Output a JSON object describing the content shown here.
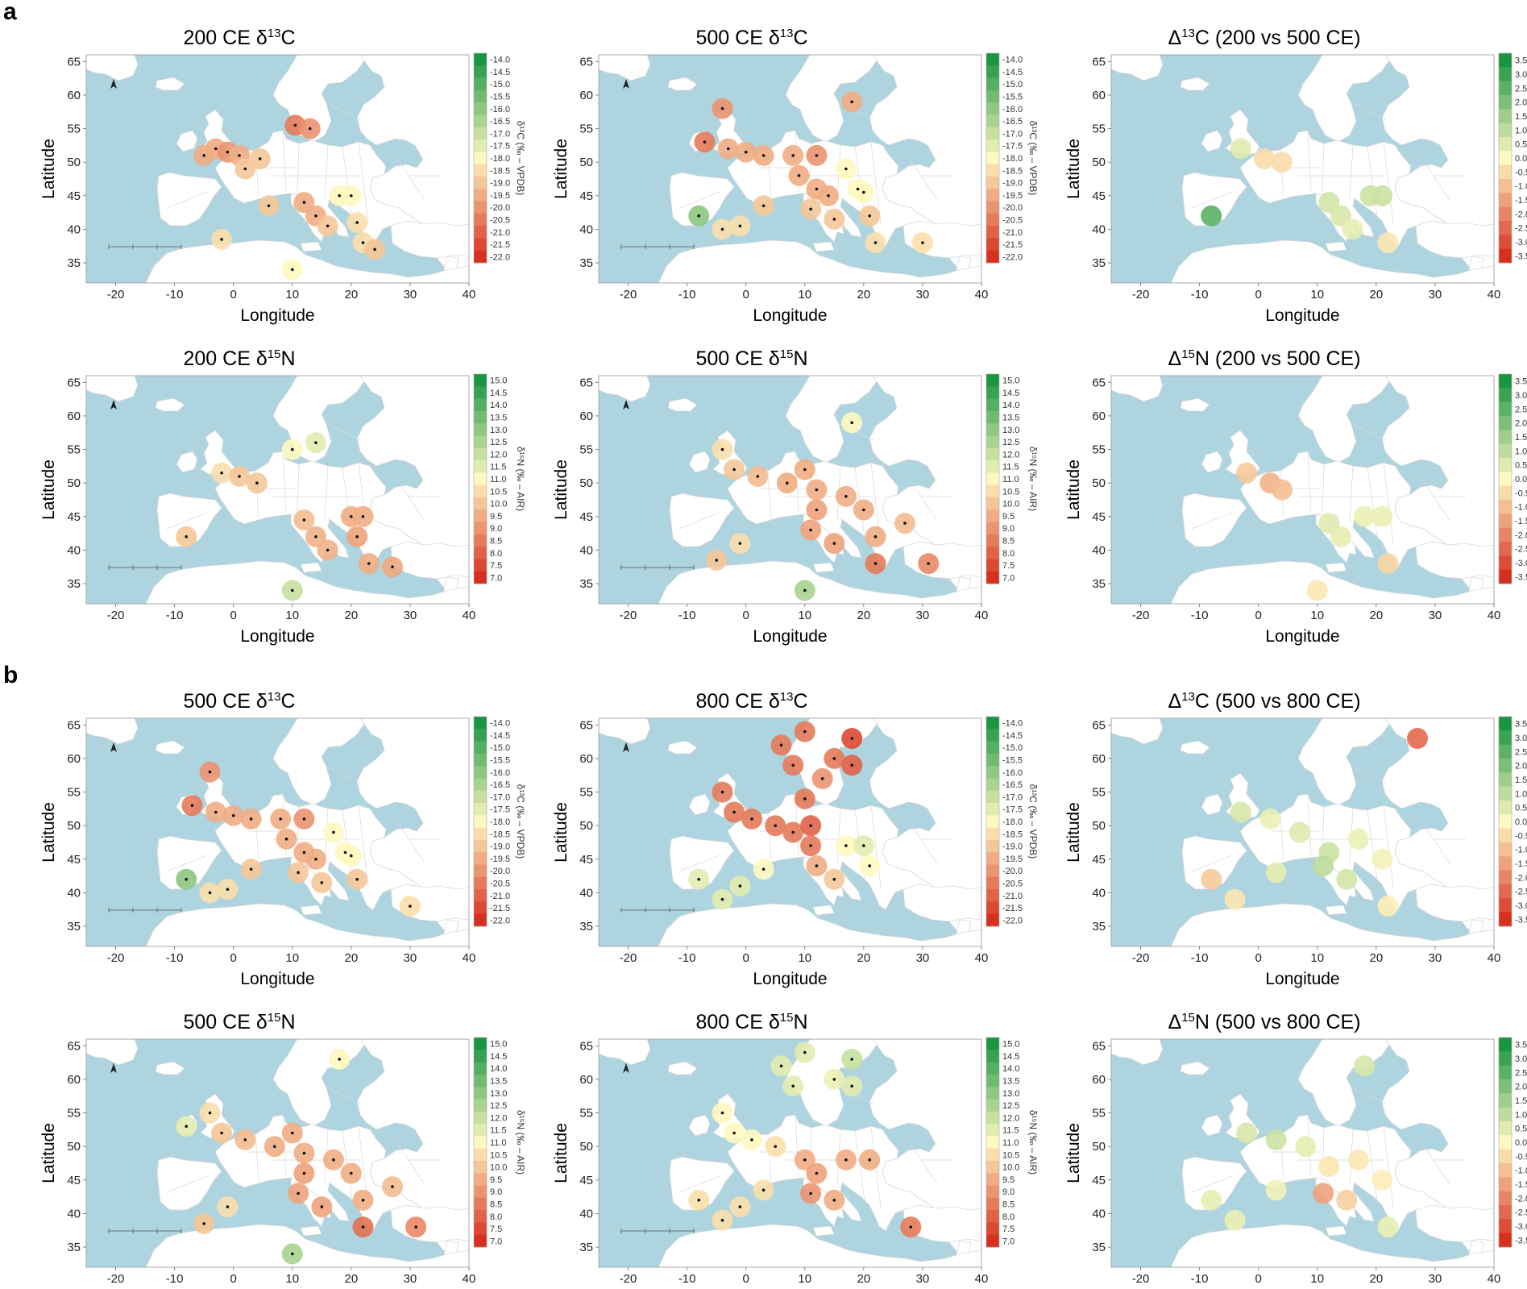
{
  "figure": {
    "section_labels": [
      "a",
      "b"
    ],
    "axis_labels": {
      "x": "Longitude",
      "y": "Latitude"
    },
    "x_ticks": [
      -20,
      -10,
      0,
      10,
      20,
      30,
      40
    ],
    "y_ticks": [
      35,
      40,
      45,
      50,
      55,
      60,
      65
    ],
    "colors": {
      "sea": "#aed4e0",
      "land": "#ffffff",
      "border": "#d8d8d8",
      "scale_low": "#d7301f",
      "scale_mid": "#fff8c0",
      "scale_high": "#1a9641"
    }
  },
  "legends": {
    "d13C": {
      "title": "δ¹³C (‰ – VPDB)",
      "labels": [
        "-14.0",
        "-14.5",
        "-15.0",
        "-15.5",
        "-16.0",
        "-16.5",
        "-17.0",
        "-17.5",
        "-18.0",
        "-18.5",
        "-19.0",
        "-19.5",
        "-20.0",
        "-20.5",
        "-21.0",
        "-21.5",
        "-22.0"
      ]
    },
    "d15N": {
      "title": "δ¹⁵N (‰ – AIR)",
      "labels": [
        "15.0",
        "14.5",
        "14.0",
        "13.5",
        "13.0",
        "12.5",
        "12.0",
        "11.5",
        "11.0",
        "10.5",
        "10.0",
        "9.5",
        "9.0",
        "8.5",
        "8.0",
        "7.5",
        "7.0"
      ]
    },
    "D13C": {
      "title": "Δ¹³C (‰ – VPDB)",
      "labels": [
        "3.5",
        "3.0",
        "2.5",
        "2.0",
        "1.5",
        "1.0",
        "0.5",
        "0.0",
        "-0.5",
        "-1.0",
        "-1.5",
        "-2.0",
        "-2.5",
        "-3.0",
        "-3.5"
      ]
    },
    "D15N": {
      "title": "Δ¹⁵N (‰ – AIR)",
      "labels": [
        "3.5",
        "3.0",
        "2.5",
        "2.0",
        "1.5",
        "1.0",
        "0.5",
        "0.0",
        "-0.5",
        "-1.0",
        "-1.5",
        "-2.0",
        "-2.5",
        "-3.0",
        "-3.5"
      ]
    }
  },
  "panels": [
    {
      "title_prefix": "200 CE δ",
      "sup": "13",
      "title_suffix": "C",
      "legend": "d13C",
      "scheme": "abs",
      "sites": [
        [
          -3,
          52,
          -19.5
        ],
        [
          -1,
          51.5,
          -20
        ],
        [
          1,
          51,
          -19.5
        ],
        [
          2,
          49,
          -19
        ],
        [
          4.5,
          50.5,
          -19
        ],
        [
          -5,
          51,
          -19.5
        ],
        [
          10.5,
          55.5,
          -20.5
        ],
        [
          13,
          55,
          -20
        ],
        [
          12,
          44,
          -19.5
        ],
        [
          14,
          42,
          -19.5
        ],
        [
          16,
          40.5,
          -19
        ],
        [
          18,
          45,
          -18
        ],
        [
          20,
          45,
          -18
        ],
        [
          21,
          41,
          -18.5
        ],
        [
          22,
          38,
          -18.5
        ],
        [
          24,
          37,
          -19
        ],
        [
          6,
          43.5,
          -19
        ],
        [
          -2,
          38.5,
          -18.5
        ],
        [
          10,
          34,
          -18
        ]
      ]
    },
    {
      "title_prefix": "500 CE δ",
      "sup": "13",
      "title_suffix": "C",
      "legend": "d13C",
      "scheme": "abs",
      "sites": [
        [
          -7,
          53,
          -20.5
        ],
        [
          -4,
          58,
          -20
        ],
        [
          -3,
          52,
          -19.5
        ],
        [
          0,
          51.5,
          -19.5
        ],
        [
          3,
          51,
          -19.5
        ],
        [
          8,
          51,
          -19.5
        ],
        [
          9,
          48,
          -19.5
        ],
        [
          12,
          51,
          -20
        ],
        [
          12,
          46,
          -19.5
        ],
        [
          14,
          45,
          -19.5
        ],
        [
          11,
          43,
          -19
        ],
        [
          15,
          41.5,
          -19
        ],
        [
          17,
          49,
          -18
        ],
        [
          19,
          46,
          -18
        ],
        [
          20,
          45.5,
          -18
        ],
        [
          21,
          42,
          -19
        ],
        [
          22,
          38,
          -18.5
        ],
        [
          -8,
          42,
          -16
        ],
        [
          -4,
          40,
          -18.5
        ],
        [
          -1,
          40.5,
          -18.5
        ],
        [
          3,
          43.5,
          -19
        ],
        [
          30,
          38,
          -18.5
        ],
        [
          18,
          59,
          -19.5
        ]
      ]
    },
    {
      "title_prefix": "Δ",
      "sup": "13",
      "title_suffix": "C (200 vs 500 CE)",
      "legend": "D13C",
      "scheme": "diff",
      "sites": [
        [
          -3,
          52,
          0.5
        ],
        [
          1,
          50.5,
          -0.5
        ],
        [
          4,
          50,
          -0.5
        ],
        [
          12,
          44,
          0.7
        ],
        [
          14,
          42,
          0.6
        ],
        [
          19,
          45,
          0.8
        ],
        [
          21,
          45,
          0.8
        ],
        [
          22,
          38,
          -0.3
        ],
        [
          -8,
          42,
          2.5
        ],
        [
          16,
          40,
          0.4
        ]
      ]
    },
    {
      "title_prefix": "200 CE δ",
      "sup": "15",
      "title_suffix": "N",
      "legend": "d15N",
      "scheme": "abs",
      "sites": [
        [
          -2,
          51.5,
          10.5
        ],
        [
          1,
          51,
          10
        ],
        [
          4,
          50,
          10
        ],
        [
          10,
          55,
          11
        ],
        [
          14,
          56,
          11.5
        ],
        [
          12,
          44.5,
          9.8
        ],
        [
          14,
          42,
          9.6
        ],
        [
          16,
          40,
          9.6
        ],
        [
          20,
          45,
          9.5
        ],
        [
          22,
          45,
          9.5
        ],
        [
          21,
          42,
          9.3
        ],
        [
          23,
          38,
          9.5
        ],
        [
          27,
          37.5,
          9.4
        ],
        [
          10,
          34,
          12
        ],
        [
          -8,
          42,
          10
        ]
      ]
    },
    {
      "title_prefix": "500 CE δ",
      "sup": "15",
      "title_suffix": "N",
      "legend": "d15N",
      "scheme": "abs",
      "sites": [
        [
          -4,
          55,
          10.5
        ],
        [
          -2,
          52,
          10
        ],
        [
          2,
          51,
          9.8
        ],
        [
          7,
          50,
          9.5
        ],
        [
          10,
          52,
          9.5
        ],
        [
          12,
          49,
          9.5
        ],
        [
          12,
          46,
          9.3
        ],
        [
          11,
          43,
          9.3
        ],
        [
          15,
          41,
          9.3
        ],
        [
          17,
          48,
          9.5
        ],
        [
          20,
          46,
          9.5
        ],
        [
          22,
          42,
          9.5
        ],
        [
          27,
          44,
          9.8
        ],
        [
          22,
          38,
          8.5
        ],
        [
          31,
          38,
          8.8
        ],
        [
          -5,
          38.5,
          10
        ],
        [
          -1,
          41,
          10.5
        ],
        [
          18,
          59,
          11
        ],
        [
          10,
          34,
          12.5
        ]
      ]
    },
    {
      "title_prefix": "Δ",
      "sup": "15",
      "title_suffix": "N (200 vs 500 CE)",
      "legend": "D15N",
      "scheme": "diff",
      "sites": [
        [
          -2,
          51.5,
          -0.8
        ],
        [
          2,
          50,
          -1.2
        ],
        [
          4,
          49,
          -1
        ],
        [
          12,
          44,
          0.5
        ],
        [
          14,
          42,
          0.4
        ],
        [
          18,
          45,
          0.3
        ],
        [
          21,
          45,
          0.3
        ],
        [
          22,
          38,
          -0.6
        ],
        [
          10,
          34,
          -0.3
        ]
      ]
    },
    {
      "title_prefix": "500 CE δ",
      "sup": "13",
      "title_suffix": "C",
      "legend": "d13C",
      "scheme": "abs",
      "sites": [
        [
          -7,
          53,
          -20.5
        ],
        [
          -4,
          58,
          -20
        ],
        [
          -3,
          52,
          -19.5
        ],
        [
          0,
          51.5,
          -19.5
        ],
        [
          3,
          51,
          -19.5
        ],
        [
          8,
          51,
          -19.5
        ],
        [
          9,
          48,
          -19.5
        ],
        [
          12,
          51,
          -20
        ],
        [
          12,
          46,
          -19.5
        ],
        [
          14,
          45,
          -19.5
        ],
        [
          11,
          43,
          -19
        ],
        [
          15,
          41.5,
          -19
        ],
        [
          17,
          49,
          -18
        ],
        [
          19,
          46,
          -18
        ],
        [
          20,
          45.5,
          -18
        ],
        [
          21,
          42,
          -19
        ],
        [
          30,
          38,
          -18.5
        ],
        [
          -8,
          42,
          -16
        ],
        [
          -4,
          40,
          -18.5
        ],
        [
          -1,
          40.5,
          -18.5
        ],
        [
          3,
          43.5,
          -19
        ]
      ]
    },
    {
      "title_prefix": "800 CE δ",
      "sup": "13",
      "title_suffix": "C",
      "legend": "d13C",
      "scheme": "abs",
      "sites": [
        [
          6,
          62,
          -20.5
        ],
        [
          10,
          64,
          -20.5
        ],
        [
          8,
          59,
          -20.5
        ],
        [
          13,
          57,
          -20
        ],
        [
          15,
          60,
          -20.5
        ],
        [
          18,
          63,
          -21.5
        ],
        [
          18,
          59,
          -21
        ],
        [
          -4,
          55,
          -20.5
        ],
        [
          -2,
          52,
          -20.5
        ],
        [
          1,
          51,
          -20.5
        ],
        [
          5,
          50,
          -20.5
        ],
        [
          8,
          49,
          -20.5
        ],
        [
          11,
          50,
          -21
        ],
        [
          11,
          47,
          -20.5
        ],
        [
          12,
          44,
          -19.5
        ],
        [
          15,
          42,
          -19
        ],
        [
          17,
          47,
          -18
        ],
        [
          20,
          47,
          -17.5
        ],
        [
          21,
          44,
          -18
        ],
        [
          -8,
          42,
          -17.5
        ],
        [
          -4,
          39,
          -17.5
        ],
        [
          -1,
          41,
          -17.5
        ],
        [
          3,
          43.5,
          -18
        ],
        [
          10,
          54,
          -20.5
        ]
      ]
    },
    {
      "title_prefix": "Δ",
      "sup": "13",
      "title_suffix": "C (500 vs 800 CE)",
      "legend": "D13C",
      "scheme": "diff",
      "sites": [
        [
          -3,
          52,
          0.6
        ],
        [
          2,
          51,
          0.3
        ],
        [
          7,
          49,
          0.5
        ],
        [
          12,
          46,
          0.8
        ],
        [
          11,
          44,
          1.0
        ],
        [
          15,
          42,
          0.7
        ],
        [
          17,
          48,
          0.3
        ],
        [
          21,
          45,
          0.2
        ],
        [
          -8,
          42,
          -0.8
        ],
        [
          -4,
          39,
          -0.3
        ],
        [
          3,
          43,
          0.4
        ],
        [
          27,
          63,
          -2.5
        ],
        [
          22,
          38,
          -0.2
        ]
      ]
    },
    {
      "title_prefix": "500 CE δ",
      "sup": "15",
      "title_suffix": "N",
      "legend": "d15N",
      "scheme": "abs",
      "sites": [
        [
          -4,
          55,
          10.5
        ],
        [
          -8,
          53,
          11.5
        ],
        [
          -2,
          52,
          10
        ],
        [
          2,
          51,
          9.8
        ],
        [
          7,
          50,
          9.5
        ],
        [
          10,
          52,
          9.5
        ],
        [
          12,
          49,
          9.5
        ],
        [
          12,
          46,
          9.3
        ],
        [
          11,
          43,
          9.3
        ],
        [
          15,
          41,
          9.3
        ],
        [
          17,
          48,
          9.5
        ],
        [
          20,
          46,
          9.5
        ],
        [
          22,
          42,
          9.5
        ],
        [
          27,
          44,
          9.8
        ],
        [
          22,
          38,
          8.3
        ],
        [
          31,
          38,
          8.8
        ],
        [
          -5,
          38.5,
          10
        ],
        [
          -1,
          41,
          10.5
        ],
        [
          18,
          63,
          11
        ],
        [
          10,
          34,
          12.5
        ]
      ]
    },
    {
      "title_prefix": "800 CE δ",
      "sup": "15",
      "title_suffix": "N",
      "legend": "d15N",
      "scheme": "abs",
      "sites": [
        [
          6,
          62,
          11.5
        ],
        [
          10,
          64,
          11.5
        ],
        [
          8,
          59,
          11.5
        ],
        [
          15,
          60,
          11.3
        ],
        [
          18,
          63,
          12
        ],
        [
          18,
          59,
          11.5
        ],
        [
          -4,
          55,
          11
        ],
        [
          -2,
          52,
          11
        ],
        [
          1,
          51,
          11
        ],
        [
          5,
          50,
          10.5
        ],
        [
          10,
          48,
          9.5
        ],
        [
          12,
          46,
          9.3
        ],
        [
          11,
          43,
          9
        ],
        [
          15,
          42,
          9.5
        ],
        [
          17,
          48,
          9.5
        ],
        [
          21,
          48,
          9.5
        ],
        [
          -8,
          42,
          10.5
        ],
        [
          -4,
          39,
          10.5
        ],
        [
          -1,
          41,
          10.5
        ],
        [
          3,
          43.5,
          10.5
        ],
        [
          28,
          38,
          8.5
        ]
      ]
    },
    {
      "title_prefix": "Δ",
      "sup": "15",
      "title_suffix": "N (500 vs 800 CE)",
      "legend": "D15N",
      "scheme": "diff",
      "sites": [
        [
          -2,
          52,
          0.6
        ],
        [
          3,
          51,
          0.8
        ],
        [
          8,
          50,
          0.4
        ],
        [
          12,
          47,
          -0.3
        ],
        [
          11,
          43,
          -1.5
        ],
        [
          15,
          42,
          -0.7
        ],
        [
          17,
          48,
          -0.3
        ],
        [
          21,
          45,
          -0.2
        ],
        [
          -8,
          42,
          0.4
        ],
        [
          -4,
          39,
          0.3
        ],
        [
          3,
          43.5,
          0.2
        ],
        [
          18,
          62,
          0.6
        ],
        [
          22,
          38,
          0.3
        ]
      ]
    }
  ]
}
